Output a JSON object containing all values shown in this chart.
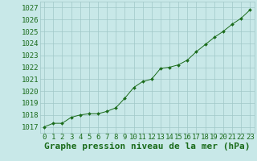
{
  "x": [
    0,
    1,
    2,
    3,
    4,
    5,
    6,
    7,
    8,
    9,
    10,
    11,
    12,
    13,
    14,
    15,
    16,
    17,
    18,
    19,
    20,
    21,
    22,
    23
  ],
  "y": [
    1017.0,
    1017.3,
    1017.3,
    1017.8,
    1018.0,
    1018.1,
    1018.1,
    1018.3,
    1018.6,
    1019.4,
    1020.3,
    1020.8,
    1021.0,
    1021.9,
    1022.0,
    1022.2,
    1022.6,
    1023.3,
    1023.9,
    1024.5,
    1025.0,
    1025.6,
    1026.1,
    1026.8
  ],
  "ylim": [
    1016.5,
    1027.5
  ],
  "xlim": [
    -0.5,
    23.5
  ],
  "yticks": [
    1017,
    1018,
    1019,
    1020,
    1021,
    1022,
    1023,
    1024,
    1025,
    1026,
    1027
  ],
  "xticks": [
    0,
    1,
    2,
    3,
    4,
    5,
    6,
    7,
    8,
    9,
    10,
    11,
    12,
    13,
    14,
    15,
    16,
    17,
    18,
    19,
    20,
    21,
    22,
    23
  ],
  "line_color": "#1a6b1a",
  "marker_color": "#1a6b1a",
  "bg_color": "#c8e8e8",
  "grid_color": "#a0c8c8",
  "outer_bg": "#c8e8e8",
  "xlabel": "Graphe pression niveau de la mer (hPa)",
  "xlabel_color": "#1a6b1a",
  "tick_color": "#1a6b1a",
  "title_fontsize": 8,
  "tick_fontsize": 6.5
}
